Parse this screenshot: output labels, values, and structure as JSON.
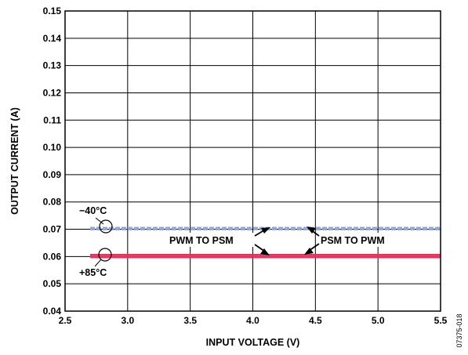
{
  "chart_data": {
    "type": "line",
    "title": "",
    "xlabel": "INPUT VOLTAGE (V)",
    "ylabel": "OUTPUT CURRENT (A)",
    "xlim": [
      2.5,
      5.5
    ],
    "ylim": [
      0.04,
      0.15
    ],
    "x_ticks": [
      "2.5",
      "3.0",
      "3.5",
      "4.0",
      "4.5",
      "5.0",
      "5.5"
    ],
    "y_ticks": [
      "0.04",
      "0.05",
      "0.06",
      "0.07",
      "0.08",
      "0.09",
      "0.10",
      "0.11",
      "0.12",
      "0.13",
      "0.14",
      "0.15"
    ],
    "grid": true,
    "series": [
      {
        "name": "−40°C",
        "color": "#8fa8d8",
        "style": "dashed",
        "lines": [
          {
            "x": [
              2.7,
              5.5
            ],
            "y": [
              0.0705,
              0.0705
            ]
          },
          {
            "x": [
              2.7,
              5.5
            ],
            "y": [
              0.07,
              0.07
            ]
          }
        ]
      },
      {
        "name": "+85°C",
        "color": "#e8305a",
        "style": "solid",
        "lines": [
          {
            "x": [
              2.7,
              5.5
            ],
            "y": [
              0.0606,
              0.0606
            ]
          },
          {
            "x": [
              2.7,
              5.5
            ],
            "y": [
              0.0598,
              0.0598
            ]
          }
        ]
      }
    ],
    "annotations": [
      {
        "text": "PWM TO PSM",
        "x": 3.84,
        "y": 0.0652
      },
      {
        "text": "PSM TO PWM",
        "x": 4.83,
        "y": 0.0652
      }
    ]
  },
  "figure_id": "07375-018"
}
